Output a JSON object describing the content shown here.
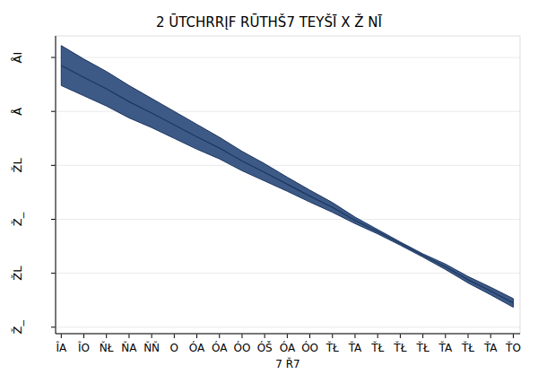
{
  "chart_data": {
    "type": "line",
    "title": "2 ŪTCHRRĮF RŪTHŠ7 TEYŠĪ X Ž NĪ",
    "x_label": "7 Ř7",
    "x": [
      0,
      1,
      2,
      3,
      4,
      5,
      6,
      7,
      8,
      9,
      10,
      11,
      12,
      13,
      14,
      15,
      16,
      17,
      18,
      19,
      20
    ],
    "values": [
      4.85,
      4.63,
      4.42,
      4.18,
      3.97,
      3.75,
      3.53,
      3.32,
      3.08,
      2.87,
      2.65,
      2.43,
      2.22,
      1.98,
      1.77,
      1.55,
      1.33,
      1.12,
      0.88,
      0.67,
      0.45
    ],
    "upper": [
      5.22,
      4.97,
      4.74,
      4.48,
      4.24,
      4.0,
      3.76,
      3.52,
      3.26,
      3.03,
      2.78,
      2.54,
      2.31,
      2.04,
      1.81,
      1.58,
      1.36,
      1.17,
      0.94,
      0.74,
      0.53
    ],
    "lower": [
      4.48,
      4.29,
      4.1,
      3.88,
      3.7,
      3.5,
      3.3,
      3.12,
      2.9,
      2.71,
      2.52,
      2.32,
      2.13,
      1.92,
      1.73,
      1.52,
      1.3,
      1.07,
      0.82,
      0.6,
      0.37
    ],
    "color": "#3d5a87",
    "xlim": [
      -0.25,
      20.3
    ],
    "xticks": [
      {
        "value": 0,
        "label": "ÎA"
      },
      {
        "value": 1,
        "label": "ÎO"
      },
      {
        "value": 2,
        "label": "ŇŁ"
      },
      {
        "value": 3,
        "label": "ŇA"
      },
      {
        "value": 4,
        "label": "ŇŇ"
      },
      {
        "value": 5,
        "label": "O"
      },
      {
        "value": 6,
        "label": "ÓA"
      },
      {
        "value": 7,
        "label": "ÓA"
      },
      {
        "value": 8,
        "label": "ÓO"
      },
      {
        "value": 9,
        "label": "ÓŠ"
      },
      {
        "value": 10,
        "label": "ÓA"
      },
      {
        "value": 11,
        "label": "ÓO"
      },
      {
        "value": 12,
        "label": "ŤŁ"
      },
      {
        "value": 13,
        "label": "ŤA"
      },
      {
        "value": 14,
        "label": "ŤŁ"
      },
      {
        "value": 15,
        "label": "ŤŁ"
      },
      {
        "value": 16,
        "label": "ŤŁ"
      },
      {
        "value": 17,
        "label": "ŤA"
      },
      {
        "value": 18,
        "label": "ŤŁ"
      },
      {
        "value": 19,
        "label": "ŤA"
      },
      {
        "value": 20,
        "label": "ŤO"
      }
    ],
    "ylim": [
      -0.12,
      5.4
    ],
    "yticks": [
      {
        "value": 0,
        "label": "Ž_"
      },
      {
        "value": 1,
        "label": "ŽL"
      },
      {
        "value": 2,
        "label": "Ž_"
      },
      {
        "value": 3,
        "label": "ŽL"
      },
      {
        "value": 4,
        "label": "Å"
      },
      {
        "value": 5,
        "label": "ÅI"
      }
    ],
    "grid": true
  }
}
